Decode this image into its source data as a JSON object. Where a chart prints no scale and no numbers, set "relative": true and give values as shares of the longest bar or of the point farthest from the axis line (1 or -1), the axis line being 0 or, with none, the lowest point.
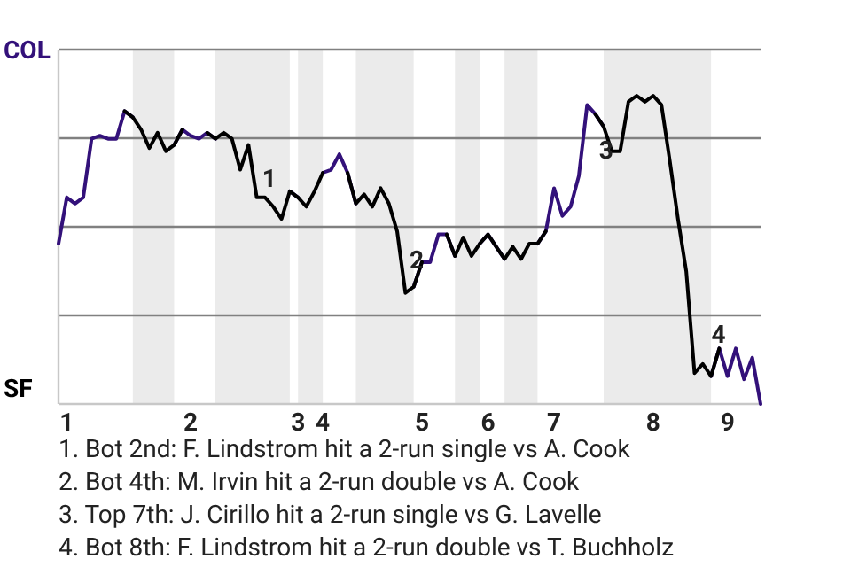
{
  "chart_data": {
    "type": "line",
    "relative": true,
    "categories": [
      null,
      "1",
      null,
      null,
      null,
      null,
      null,
      null,
      null,
      null,
      null,
      null,
      null,
      null,
      null,
      null,
      "2",
      null,
      null,
      null,
      null,
      null,
      null,
      null,
      null,
      null,
      null,
      null,
      null,
      "3",
      null,
      null,
      "4",
      null,
      null,
      null,
      null,
      null,
      null,
      null,
      null,
      null,
      null,
      null,
      "5",
      null,
      null,
      null,
      null,
      null,
      null,
      null,
      "6",
      null,
      null,
      null,
      null,
      null,
      null,
      null,
      "7",
      null,
      null,
      null,
      null,
      null,
      null,
      null,
      null,
      null,
      null,
      null,
      "8",
      null,
      null,
      null,
      null,
      null,
      null,
      null,
      null,
      "9",
      null,
      null,
      null,
      null
    ],
    "series": [
      {
        "color": "#33117a",
        "values": [
          0.52,
          0.67,
          0.65,
          0.67,
          0.86,
          0.87,
          0.86,
          0.86,
          0.95,
          0.93,
          null,
          null,
          null,
          null,
          0.84,
          0.89,
          0.87,
          0.86,
          0.88,
          0.86,
          null,
          null,
          null,
          null,
          null,
          null,
          null,
          null,
          0.69,
          0.67,
          null,
          null,
          0.75,
          0.76,
          0.81,
          0.75,
          0.65,
          null,
          null,
          null,
          null,
          null,
          null,
          0.38,
          0.46,
          0.46,
          0.55,
          0.55,
          0.48,
          null,
          null,
          0.52,
          0.55,
          0.51,
          0.47,
          null,
          null,
          null,
          0.52,
          0.56,
          0.7,
          0.61,
          0.64,
          0.74,
          0.97,
          0.94,
          0.9,
          null,
          null,
          null,
          null,
          null,
          null,
          null,
          null,
          null,
          null,
          null,
          null,
          0.09,
          0.18,
          0.09,
          0.18,
          0.08,
          0.15,
          0
        ]
      },
      {
        "color": "#000000",
        "values": [
          null,
          null,
          null,
          null,
          null,
          null,
          null,
          null,
          0.95,
          0.93,
          0.89,
          0.83,
          0.88,
          0.82,
          0.84,
          0.89,
          null,
          null,
          0.88,
          0.86,
          0.88,
          0.86,
          0.76,
          0.84,
          0.67,
          0.67,
          0.64,
          0.6,
          0.69,
          0.67,
          0.64,
          0.69,
          0.75,
          null,
          null,
          0.75,
          0.65,
          0.68,
          0.64,
          0.7,
          0.65,
          0.56,
          0.36,
          0.38,
          0.46,
          null,
          null,
          0.55,
          0.48,
          0.54,
          0.48,
          0.52,
          0.55,
          0.51,
          0.47,
          0.51,
          0.47,
          0.52,
          0.52,
          0.56,
          null,
          null,
          null,
          null,
          null,
          0.94,
          0.9,
          0.82,
          0.82,
          0.98,
          1,
          0.98,
          1,
          0.97,
          0.79,
          0.6,
          0.43,
          0.1,
          0.13,
          0.09,
          0.18,
          null,
          null,
          null,
          null,
          null
        ]
      }
    ],
    "grid": "y",
    "marker": "none",
    "line_style": "solid",
    "annotations": [
      "COL",
      "SF",
      "1",
      "2",
      "3",
      "4",
      "1. Bot 2nd: F. Lindstrom hit a 2-run single vs A. Cook",
      "2. Bot 4th: M. Irvin hit a 2-run double vs A. Cook",
      "3. Top 7th: J. Cirillo hit a 2-run single vs G. Lavelle",
      "4. Bot 8th: F. Lindstrom hit a 2-run double vs T. Buchholz"
    ]
  }
}
